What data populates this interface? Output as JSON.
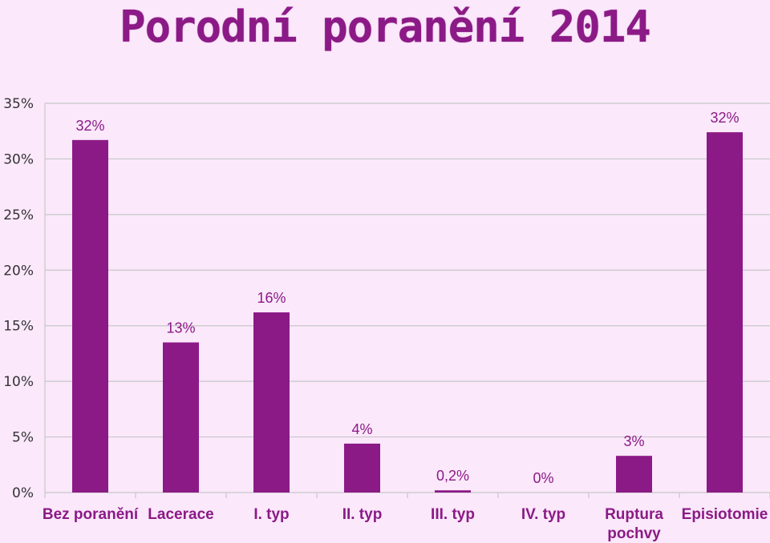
{
  "chart_data": {
    "type": "bar",
    "title": "Porodní poranění 2014",
    "categories": [
      "Bez poranění",
      "Lacerace",
      "I. typ",
      "II. typ",
      "III. typ",
      "IV. typ",
      "Ruptura pochvy",
      "Episiotomie"
    ],
    "values": [
      31.7,
      13.5,
      16.2,
      4.4,
      0.2,
      0,
      3.3,
      32.4
    ],
    "data_labels": [
      "32%",
      "13%",
      "16%",
      "4%",
      "0,2%",
      "0%",
      "3%",
      "32%"
    ],
    "y_ticks": [
      "0%",
      "5%",
      "10%",
      "15%",
      "20%",
      "25%",
      "30%",
      "35%"
    ],
    "ylim": [
      0,
      35
    ],
    "grid": true,
    "legend": "none",
    "colors": {
      "bar": "#8b1a86",
      "grid": "#c7c7c7",
      "background": "#fbe8fb"
    }
  }
}
